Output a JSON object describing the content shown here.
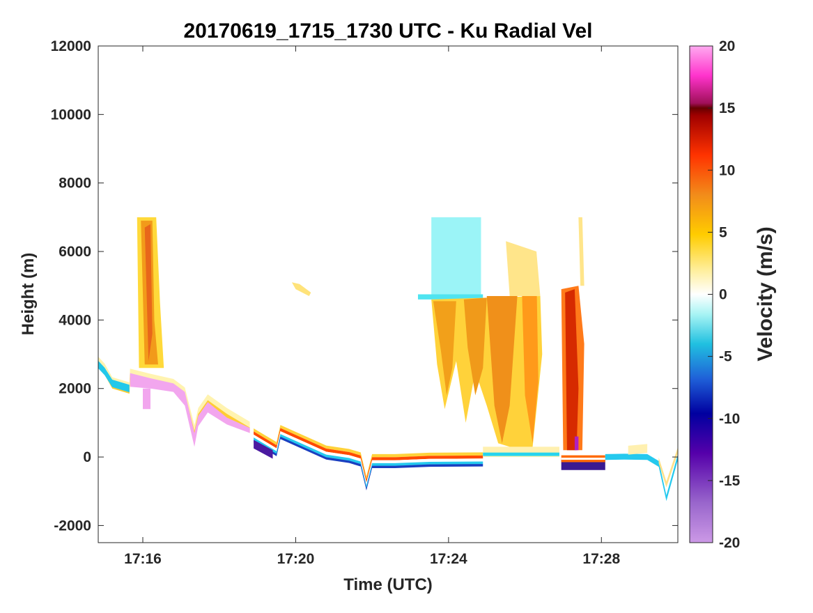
{
  "chart_data": {
    "type": "heatmap",
    "title": "20170619_1715_1730 UTC - Ku Radial Vel",
    "xlabel": "Time (UTC)",
    "ylabel": "Height (m)",
    "xlim": [
      "17:14:50",
      "17:30:00"
    ],
    "ylim": [
      -2500,
      12000
    ],
    "x_ticks": [
      "17:16",
      "17:20",
      "17:24",
      "17:28"
    ],
    "y_ticks": [
      -2000,
      0,
      2000,
      4000,
      6000,
      8000,
      10000,
      12000
    ],
    "colorbar": {
      "label": "Velocity (m/s)",
      "range": [
        -20,
        20
      ],
      "ticks": [
        20,
        15,
        10,
        5,
        0,
        -5,
        -10,
        -15,
        -20
      ],
      "colormap": "diverging: violet (-20) → blue → cyan → white (0) → yellow → orange → red → dark red (15) → magenta → pink (20)"
    },
    "features": [
      {
        "name": "surface echo",
        "time_range": [
          "17:14:50",
          "17:30:00"
        ],
        "height_m": [
          -400,
          200
        ],
        "velocity_m_s": "-12 to 12 (aliased bands)"
      },
      {
        "name": "low cloud top",
        "time_range": [
          "17:14:50",
          "17:18:50"
        ],
        "height_m": [
          800,
          2900
        ],
        "velocity_m_s": "-3 to 20"
      },
      {
        "name": "convective core 1",
        "time_range": [
          "17:15:50",
          "17:16:30"
        ],
        "height_m": [
          2500,
          7000
        ],
        "velocity_m_s": "3 to 8"
      },
      {
        "name": "stratiform layer",
        "time_range": [
          "17:23:30",
          "17:24:50"
        ],
        "height_m": [
          4500,
          7000
        ],
        "velocity_m_s": "-2 to -1"
      },
      {
        "name": "convective cells 2",
        "time_range": [
          "17:23:40",
          "17:26:30"
        ],
        "height_m": [
          0,
          4600
        ],
        "velocity_m_s": "2 to 8"
      },
      {
        "name": "convective core 3",
        "time_range": [
          "17:27:00",
          "17:27:30"
        ],
        "height_m": [
          0,
          5000
        ],
        "velocity_m_s": "8 to 12"
      }
    ]
  }
}
